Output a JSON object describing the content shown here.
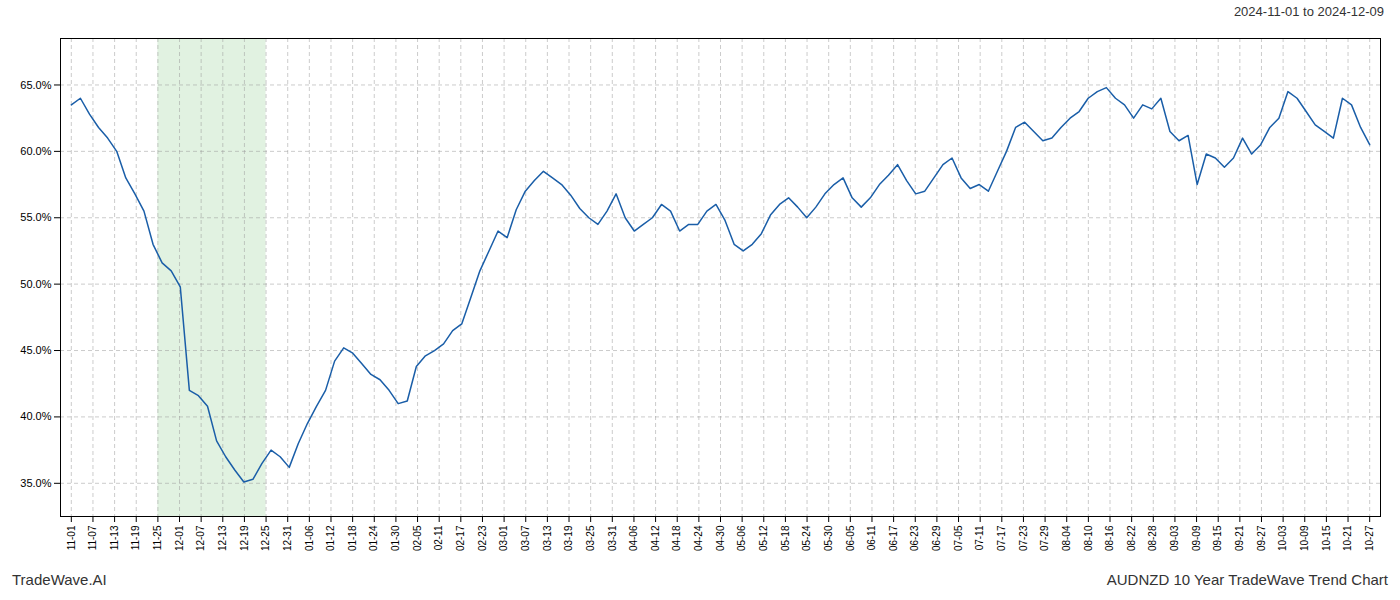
{
  "chart_data": {
    "type": "line",
    "title": "AUDNZD 10 Year TradeWave Trend Chart",
    "subtitle": "2024-11-01 to 2024-12-09",
    "caption": "TradeWave.AI",
    "color": "#1a5ea8",
    "grid": true,
    "shading": {
      "x": [
        4,
        9
      ],
      "color": "#d4ecd4"
    },
    "xlim": [
      -0.5,
      60.5
    ],
    "xticks": [
      {
        "value": 0,
        "label": "11-01"
      },
      {
        "value": 1,
        "label": "11-07"
      },
      {
        "value": 2,
        "label": "11-13"
      },
      {
        "value": 3,
        "label": "11-19"
      },
      {
        "value": 4,
        "label": "11-25"
      },
      {
        "value": 5,
        "label": "12-01"
      },
      {
        "value": 6,
        "label": "12-07"
      },
      {
        "value": 7,
        "label": "12-13"
      },
      {
        "value": 8,
        "label": "12-19"
      },
      {
        "value": 9,
        "label": "12-25"
      },
      {
        "value": 10,
        "label": "12-31"
      },
      {
        "value": 11,
        "label": "01-06"
      },
      {
        "value": 12,
        "label": "01-12"
      },
      {
        "value": 13,
        "label": "01-18"
      },
      {
        "value": 14,
        "label": "01-24"
      },
      {
        "value": 15,
        "label": "01-30"
      },
      {
        "value": 16,
        "label": "02-05"
      },
      {
        "value": 17,
        "label": "02-11"
      },
      {
        "value": 18,
        "label": "02-17"
      },
      {
        "value": 19,
        "label": "02-23"
      },
      {
        "value": 20,
        "label": "03-01"
      },
      {
        "value": 21,
        "label": "03-07"
      },
      {
        "value": 22,
        "label": "03-13"
      },
      {
        "value": 23,
        "label": "03-19"
      },
      {
        "value": 24,
        "label": "03-25"
      },
      {
        "value": 25,
        "label": "03-31"
      },
      {
        "value": 26,
        "label": "04-06"
      },
      {
        "value": 27,
        "label": "04-12"
      },
      {
        "value": 28,
        "label": "04-18"
      },
      {
        "value": 29,
        "label": "04-24"
      },
      {
        "value": 30,
        "label": "04-30"
      },
      {
        "value": 31,
        "label": "05-06"
      },
      {
        "value": 32,
        "label": "05-12"
      },
      {
        "value": 33,
        "label": "05-18"
      },
      {
        "value": 34,
        "label": "05-24"
      },
      {
        "value": 35,
        "label": "05-30"
      },
      {
        "value": 36,
        "label": "06-05"
      },
      {
        "value": 37,
        "label": "06-11"
      },
      {
        "value": 38,
        "label": "06-17"
      },
      {
        "value": 39,
        "label": "06-23"
      },
      {
        "value": 40,
        "label": "06-29"
      },
      {
        "value": 41,
        "label": "07-05"
      },
      {
        "value": 42,
        "label": "07-11"
      },
      {
        "value": 43,
        "label": "07-17"
      },
      {
        "value": 44,
        "label": "07-23"
      },
      {
        "value": 45,
        "label": "07-29"
      },
      {
        "value": 46,
        "label": "08-04"
      },
      {
        "value": 47,
        "label": "08-10"
      },
      {
        "value": 48,
        "label": "08-16"
      },
      {
        "value": 49,
        "label": "08-22"
      },
      {
        "value": 50,
        "label": "08-28"
      },
      {
        "value": 51,
        "label": "09-03"
      },
      {
        "value": 52,
        "label": "09-09"
      },
      {
        "value": 53,
        "label": "09-15"
      },
      {
        "value": 54,
        "label": "09-21"
      },
      {
        "value": 55,
        "label": "09-27"
      },
      {
        "value": 56,
        "label": "10-03"
      },
      {
        "value": 57,
        "label": "10-09"
      },
      {
        "value": 58,
        "label": "10-15"
      },
      {
        "value": 59,
        "label": "10-21"
      },
      {
        "value": 60,
        "label": "10-27"
      }
    ],
    "ylim": [
      0.325,
      0.685
    ],
    "yticks": [
      {
        "value": 0.35,
        "label": "35.0%"
      },
      {
        "value": 0.4,
        "label": "40.0%"
      },
      {
        "value": 0.45,
        "label": "45.0%"
      },
      {
        "value": 0.5,
        "label": "50.0%"
      },
      {
        "value": 0.55,
        "label": "55.0%"
      },
      {
        "value": 0.6,
        "label": "60.0%"
      },
      {
        "value": 0.65,
        "label": "65.0%"
      }
    ],
    "x": [
      0,
      0.4196,
      0.8392,
      1.2587,
      1.6783,
      2.0979,
      2.5175,
      2.9371,
      3.3566,
      3.7762,
      4.1958,
      4.6154,
      5.035,
      5.4545,
      5.8741,
      6.2937,
      6.7133,
      7.1329,
      7.5524,
      7.972,
      8.3916,
      8.8112,
      9.2308,
      9.6503,
      10.0699,
      10.4895,
      10.9091,
      11.3287,
      11.7483,
      12.1678,
      12.5874,
      13.007,
      13.4266,
      13.8462,
      14.2657,
      14.6853,
      15.1049,
      15.5245,
      15.9441,
      16.3636,
      16.7832,
      17.2028,
      17.6224,
      18.042,
      18.4615,
      18.8811,
      19.3007,
      19.7203,
      20.1399,
      20.5594,
      20.979,
      21.3986,
      21.8182,
      22.2378,
      22.6573,
      23.0769,
      23.4965,
      23.9161,
      24.3357,
      24.7552,
      25.1748,
      25.5944,
      26.014,
      26.4336,
      26.8531,
      27.2727,
      27.6923,
      28.1119,
      28.5315,
      28.951,
      29.3706,
      29.7902,
      30.2098,
      30.6294,
      31.049,
      31.4685,
      31.8881,
      32.3077,
      32.7273,
      33.1469,
      33.5664,
      33.986,
      34.4056,
      34.8252,
      35.2448,
      35.6643,
      36.0839,
      36.5035,
      36.9231,
      37.3427,
      37.7622,
      38.1818,
      38.6014,
      39.021,
      39.4406,
      39.8601,
      40.2797,
      40.6993,
      41.1189,
      41.5385,
      41.958,
      42.3776,
      42.7972,
      43.2168,
      43.6364,
      44.0559,
      44.4755,
      44.8951,
      45.3147,
      45.7343,
      46.1538,
      46.5734,
      46.993,
      47.4126,
      47.8322,
      48.2517,
      48.6713,
      49.0909,
      49.5105,
      49.9301,
      50.3497,
      50.7692,
      51.1888,
      51.6084,
      52.028,
      52.4476,
      52.8671,
      53.2867,
      53.7063,
      54.1259,
      54.5455,
      54.965,
      55.3846,
      55.8042,
      56.2238,
      56.6434,
      57.0629,
      57.4825,
      57.9021,
      58.3217,
      58.7413,
      59.1608,
      59.5804,
      60
    ],
    "values": [
      0.635,
      0.64,
      0.628,
      0.618,
      0.61,
      0.6,
      0.58,
      0.568,
      0.555,
      0.53,
      0.516,
      0.51,
      0.498,
      0.42,
      0.416,
      0.408,
      0.382,
      0.37,
      0.36,
      0.351,
      0.353,
      0.365,
      0.375,
      0.37,
      0.362,
      0.38,
      0.395,
      0.408,
      0.42,
      0.442,
      0.452,
      0.448,
      0.44,
      0.432,
      0.428,
      0.42,
      0.41,
      0.412,
      0.438,
      0.446,
      0.45,
      0.455,
      0.465,
      0.47,
      0.49,
      0.51,
      0.525,
      0.54,
      0.535,
      0.556,
      0.57,
      0.578,
      0.585,
      0.58,
      0.575,
      0.567,
      0.557,
      0.55,
      0.545,
      0.555,
      0.568,
      0.55,
      0.54,
      0.545,
      0.55,
      0.56,
      0.555,
      0.54,
      0.545,
      0.545,
      0.555,
      0.56,
      0.548,
      0.53,
      0.525,
      0.53,
      0.538,
      0.552,
      0.56,
      0.565,
      0.558,
      0.55,
      0.558,
      0.568,
      0.575,
      0.58,
      0.565,
      0.558,
      0.565,
      0.575,
      0.582,
      0.59,
      0.578,
      0.568,
      0.57,
      0.58,
      0.59,
      0.595,
      0.58,
      0.572,
      0.575,
      0.57,
      0.585,
      0.6,
      0.618,
      0.622,
      0.615,
      0.608,
      0.61,
      0.618,
      0.625,
      0.63,
      0.64,
      0.645,
      0.648,
      0.64,
      0.635,
      0.625,
      0.635,
      0.632,
      0.64,
      0.615,
      0.608,
      0.612,
      0.575,
      0.598,
      0.595,
      0.588,
      0.595,
      0.61,
      0.598,
      0.605,
      0.618,
      0.625,
      0.645,
      0.64,
      0.63,
      0.62,
      0.615,
      0.61,
      0.64,
      0.635,
      0.618,
      0.605
    ]
  }
}
